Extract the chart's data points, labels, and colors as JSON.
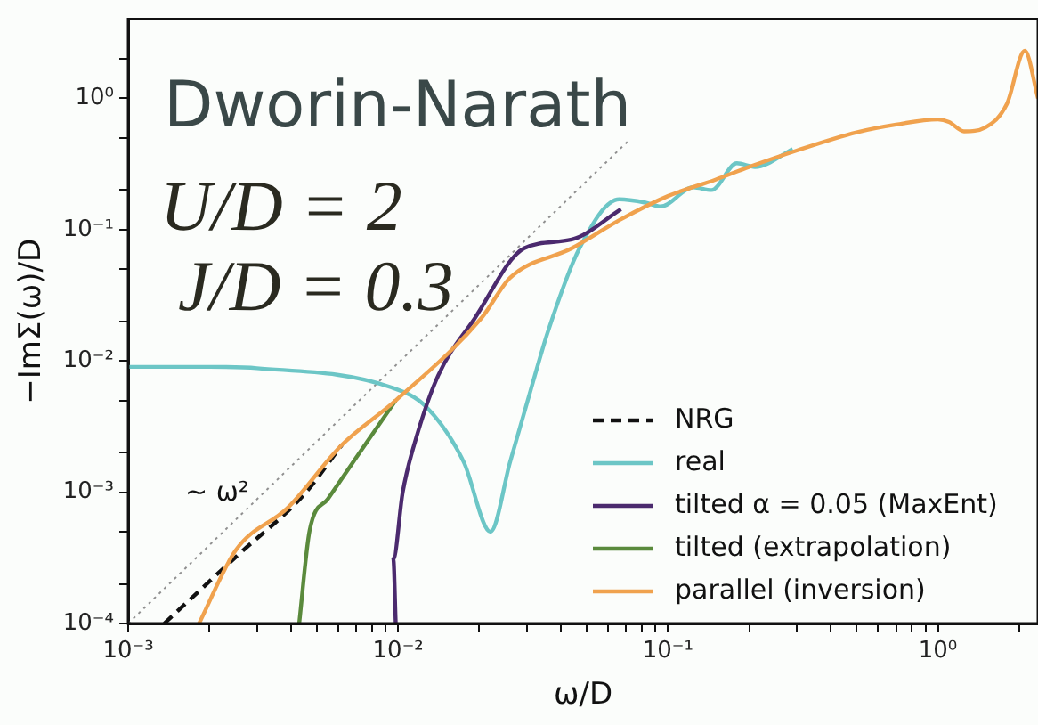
{
  "chart_data": {
    "type": "line",
    "xlabel": "ω/D",
    "ylabel": "−ImΣ(ω)/D",
    "log": "xy",
    "grid": false,
    "legend": "bottom right",
    "marker": "none",
    "xlim": [
      0.001,
      2.35
    ],
    "ylim": [
      0.0001,
      4
    ],
    "xticks": [
      {
        "value": 0.001,
        "label": "10⁻³"
      },
      {
        "value": 0.002,
        "label": null
      },
      {
        "value": 0.003,
        "label": null
      },
      {
        "value": 0.004,
        "label": null
      },
      {
        "value": 0.005,
        "label": null
      },
      {
        "value": 0.006,
        "label": null
      },
      {
        "value": 0.007,
        "label": null
      },
      {
        "value": 0.008,
        "label": null
      },
      {
        "value": 0.009,
        "label": null
      },
      {
        "value": 0.01,
        "label": "10⁻²"
      },
      {
        "value": 0.02,
        "label": null
      },
      {
        "value": 0.03,
        "label": null
      },
      {
        "value": 0.04,
        "label": null
      },
      {
        "value": 0.05,
        "label": null
      },
      {
        "value": 0.06,
        "label": null
      },
      {
        "value": 0.07,
        "label": null
      },
      {
        "value": 0.08,
        "label": null
      },
      {
        "value": 0.09,
        "label": null
      },
      {
        "value": 0.1,
        "label": "10⁻¹"
      },
      {
        "value": 0.2,
        "label": null
      },
      {
        "value": 0.3,
        "label": null
      },
      {
        "value": 0.4,
        "label": null
      },
      {
        "value": 0.5,
        "label": null
      },
      {
        "value": 0.6,
        "label": null
      },
      {
        "value": 0.7,
        "label": null
      },
      {
        "value": 0.8,
        "label": null
      },
      {
        "value": 0.9,
        "label": null
      },
      {
        "value": 1,
        "label": "10⁰"
      },
      {
        "value": 2,
        "label": null
      }
    ],
    "yticks": [
      {
        "value": 0.0001,
        "label": "10⁻⁴"
      },
      {
        "value": 0.0002,
        "label": null
      },
      {
        "value": 0.0005,
        "label": null
      },
      {
        "value": 0.001,
        "label": "10⁻³"
      },
      {
        "value": 0.002,
        "label": null
      },
      {
        "value": 0.005,
        "label": null
      },
      {
        "value": 0.01,
        "label": "10⁻²"
      },
      {
        "value": 0.02,
        "label": null
      },
      {
        "value": 0.05,
        "label": null
      },
      {
        "value": 0.1,
        "label": "10⁻¹"
      },
      {
        "value": 0.2,
        "label": null
      },
      {
        "value": 0.5,
        "label": null
      },
      {
        "value": 1,
        "label": "10⁰"
      },
      {
        "value": 2,
        "label": null
      }
    ],
    "series": [
      {
        "color": "#909090",
        "line_style": "dotted",
        "x": [
          0.001,
          0.071
        ],
        "values": [
          0.0001,
          0.47
        ]
      },
      {
        "name": "NRG",
        "color": "#111111",
        "line_style": "dashed",
        "x": [
          0.00136,
          0.0025,
          0.0045,
          0.0062
        ],
        "values": [
          0.0001,
          0.00032,
          0.00097,
          0.0023
        ]
      },
      {
        "name": "real",
        "color": "#6cc6c6",
        "line_style": "solid",
        "x": [
          0.001,
          0.002,
          0.003,
          0.0094,
          0.0128,
          0.0175,
          0.022,
          0.026,
          0.031,
          0.036,
          0.047,
          0.066,
          0.083,
          0.094,
          0.124,
          0.145,
          0.18,
          0.21,
          0.29
        ],
        "values": [
          0.009,
          0.009,
          0.0088,
          0.0063,
          0.0044,
          0.0017,
          0.0005,
          0.0017,
          0.006,
          0.017,
          0.072,
          0.17,
          0.16,
          0.15,
          0.21,
          0.2,
          0.32,
          0.3,
          0.41
        ]
      },
      {
        "name": "tilted α = 0.05 (MaxEnt)",
        "color": "#4b2a6e",
        "line_style": "solid",
        "x": [
          0.0098,
          0.0096,
          0.0104,
          0.0118,
          0.0141,
          0.0192,
          0.0293,
          0.044,
          0.067
        ],
        "values": [
          0.0001,
          0.00031,
          0.001,
          0.0028,
          0.0078,
          0.021,
          0.072,
          0.084,
          0.143
        ]
      },
      {
        "name": "tilted (extrapolation)",
        "color": "#5a8a3c",
        "line_style": "solid",
        "x": [
          0.0043,
          0.0047,
          0.0055,
          0.0072,
          0.0098
        ],
        "values": [
          0.0001,
          0.00051,
          0.00089,
          0.002,
          0.005
        ]
      },
      {
        "name": "parallel (inversion)",
        "color": "#f0a24e",
        "line_style": "solid",
        "x": [
          0.00183,
          0.0025,
          0.0039,
          0.0062,
          0.0098,
          0.0204,
          0.026,
          0.044,
          0.067,
          0.1,
          0.15,
          0.2,
          0.3,
          0.5,
          0.7,
          1.0,
          1.1,
          1.25,
          1.5,
          1.8,
          2.1,
          2.35
        ],
        "values": [
          0.0001,
          0.00036,
          0.00076,
          0.0023,
          0.005,
          0.0213,
          0.043,
          0.072,
          0.12,
          0.18,
          0.24,
          0.3,
          0.4,
          0.55,
          0.63,
          0.69,
          0.66,
          0.56,
          0.6,
          0.9,
          2.3,
          1.0
        ]
      }
    ],
    "annotations": [
      "Dworin-Narath",
      "U/D = 2",
      "J/D = 0.3",
      "~ ω²"
    ]
  }
}
